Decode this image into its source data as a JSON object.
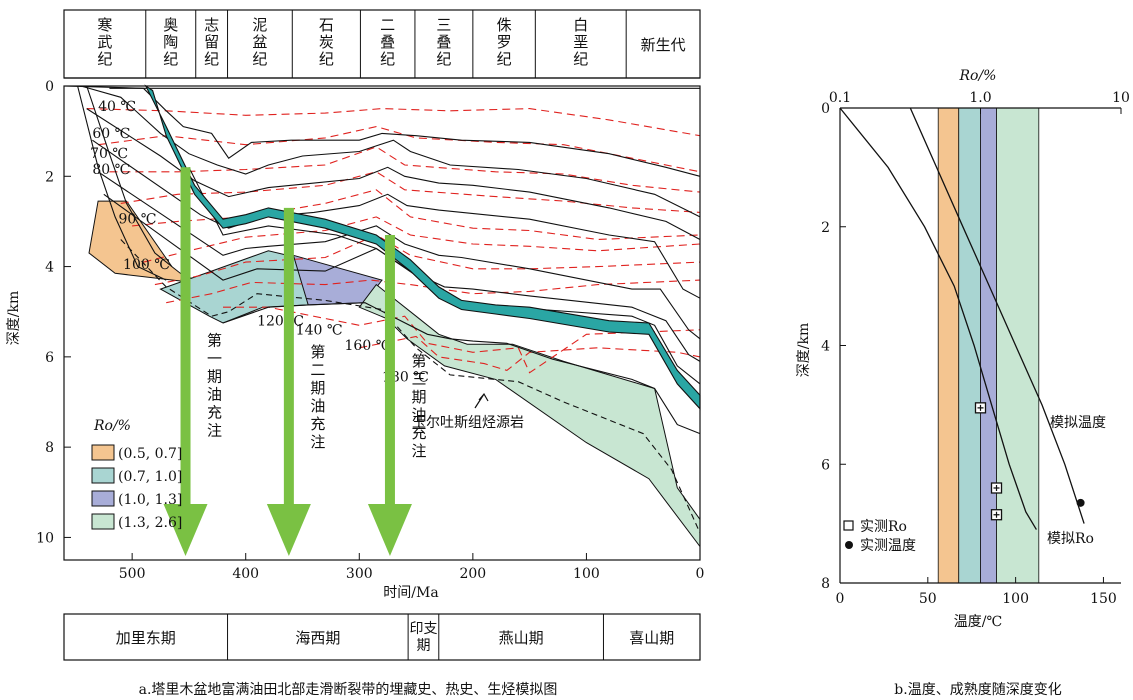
{
  "chart_data": [
    {
      "type": "area",
      "subtitle": "a.塔里木盆地富满油田北部走滑断裂带的埋藏史、热史、生烃模拟图",
      "xlabel": "时间/Ma",
      "ylabel": "深度/km",
      "xlim": [
        560,
        0
      ],
      "ylim": [
        0,
        10.5
      ],
      "xticks": [
        "500",
        "400",
        "300",
        "200",
        "100",
        "0"
      ],
      "yticks": [
        "0",
        "2",
        "4",
        "6",
        "8",
        "10"
      ],
      "periods": [
        {
          "label": "寒武纪",
          "start": 560,
          "end": 488
        },
        {
          "label": "奥陶纪",
          "start": 488,
          "end": 444
        },
        {
          "label": "志留纪",
          "start": 444,
          "end": 416
        },
        {
          "label": "泥盆纪",
          "start": 416,
          "end": 359
        },
        {
          "label": "石炭纪",
          "start": 359,
          "end": 299
        },
        {
          "label": "二叠纪",
          "start": 299,
          "end": 251
        },
        {
          "label": "三叠纪",
          "start": 251,
          "end": 200
        },
        {
          "label": "侏罗纪",
          "start": 200,
          "end": 145
        },
        {
          "label": "白垩纪",
          "start": 145,
          "end": 65
        },
        {
          "label": "新生代",
          "start": 65,
          "end": 0
        }
      ],
      "orogenies": [
        {
          "label": "加里东期",
          "start": 560,
          "end": 416
        },
        {
          "label": "海西期",
          "start": 416,
          "end": 257
        },
        {
          "label": "印支期",
          "start": 257,
          "end": 230
        },
        {
          "label": "燕山期",
          "start": 230,
          "end": 85
        },
        {
          "label": "喜山期",
          "start": 85,
          "end": 0
        }
      ],
      "isotherm_labels": [
        "40 ℃",
        "60 ℃",
        "70 ℃",
        "80 ℃",
        "90 ℃",
        "100 ℃",
        "120 ℃",
        "140 ℃",
        "160 ℃",
        "180 ℃"
      ],
      "charging_events": [
        {
          "label": "第一期油充注",
          "time": 453,
          "from_depth": 1.8,
          "to_depth": 10.5
        },
        {
          "label": "第二期油充注",
          "time": 362,
          "from_depth": 2.7,
          "to_depth": 10.5
        },
        {
          "label": "第三期油充注",
          "time": 273,
          "from_depth": 3.3,
          "to_depth": 10.5
        }
      ],
      "annotation": "玉尔吐斯组烃源岩",
      "legend_title": "Ro/%",
      "legend": [
        {
          "label": "(0.5, 0.7]",
          "color": "#f4c590"
        },
        {
          "label": "(0.7, 1.0]",
          "color": "#a9d5d2"
        },
        {
          "label": "(1.0, 1.3]",
          "color": "#a8add8"
        },
        {
          "label": "(1.3, 2.6]",
          "color": "#c8e6d2"
        }
      ],
      "grid": false
    },
    {
      "type": "line",
      "subtitle": "b.温度、成熟度随深度变化",
      "xlabel": "温度/℃",
      "x2label": "Ro/%",
      "ylabel": "深度/km",
      "xlim": [
        0,
        160
      ],
      "x2lim": [
        0.1,
        10
      ],
      "x2scale": "log",
      "ylim": [
        0,
        8
      ],
      "xticks": [
        "0",
        "50",
        "100",
        "150"
      ],
      "x2ticks": [
        "0.1",
        "1.0",
        "10"
      ],
      "yticks": [
        "0",
        "2",
        "4",
        "6",
        "8"
      ],
      "bands": [
        {
          "from": 0.5,
          "to": 0.7,
          "color": "#f4c590"
        },
        {
          "from": 0.7,
          "to": 1.0,
          "color": "#a9d5d2"
        },
        {
          "from": 1.0,
          "to": 1.3,
          "color": "#a8add8"
        },
        {
          "from": 1.3,
          "to": 2.6,
          "color": "#c8e6d2"
        }
      ],
      "series": [
        {
          "name": "模拟温度",
          "x": [
            40,
            55,
            70,
            85,
            100,
            115,
            128,
            139
          ],
          "y": [
            0,
            1,
            2,
            3,
            4,
            5,
            6,
            7
          ]
        },
        {
          "name": "模拟Ro",
          "x": [
            0.1,
            0.22,
            0.4,
            0.65,
            0.9,
            1.2,
            1.6,
            2.1,
            2.5
          ],
          "y": [
            0,
            1,
            2,
            3,
            4,
            5,
            6,
            6.8,
            7.1
          ]
        }
      ],
      "measured_ro": {
        "name": "实测Ro",
        "x": [
          1.0,
          1.3,
          1.3
        ],
        "y": [
          5.05,
          6.4,
          6.85
        ]
      },
      "measured_temp": {
        "name": "实测温度",
        "x": [
          137
        ],
        "y": [
          6.65
        ]
      },
      "grid": false
    }
  ]
}
